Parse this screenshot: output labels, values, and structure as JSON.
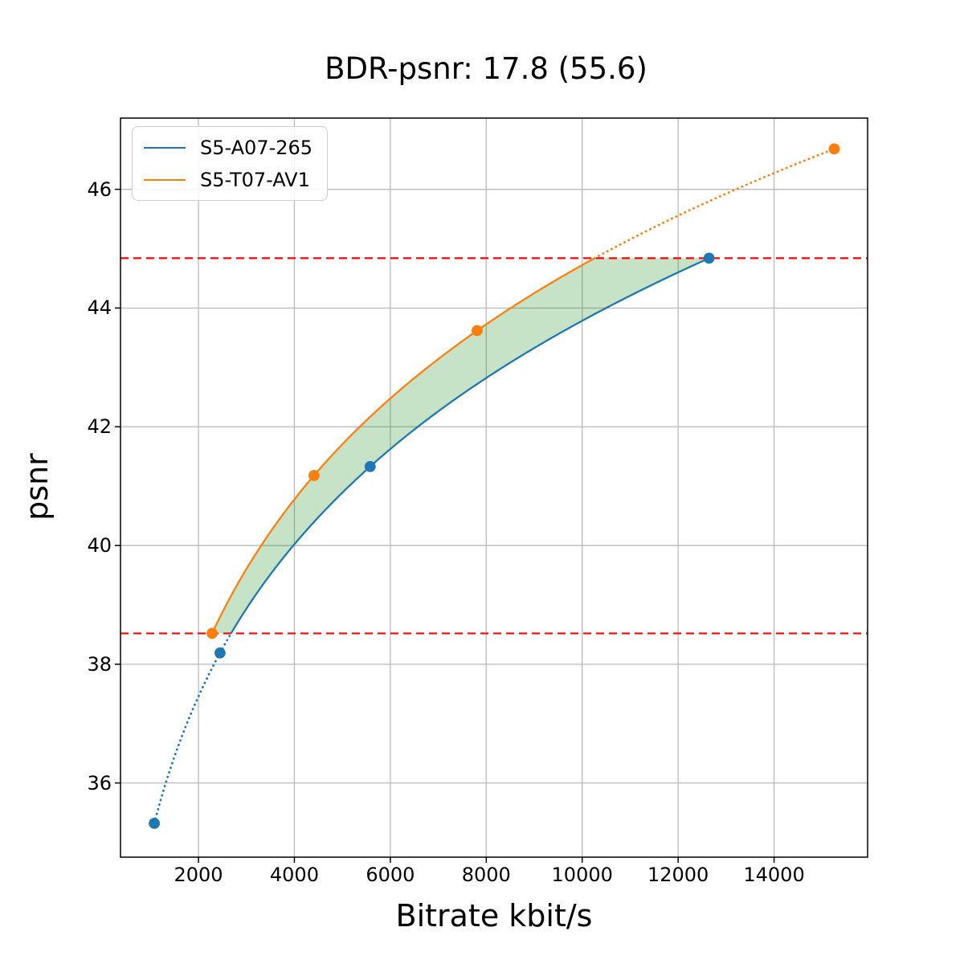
{
  "chart_data": {
    "type": "line",
    "title": "BDR-psnr: 17.8 (55.6)",
    "bd_rate_value": "17.8",
    "bd_rate_secondary": "55.6",
    "xlabel": "Bitrate kbit/s",
    "ylabel": "psnr",
    "xlim": [
      375,
      15950
    ],
    "ylim": [
      34.75,
      47.2
    ],
    "x_ticks": [
      2000,
      4000,
      6000,
      8000,
      10000,
      12000,
      14000
    ],
    "y_ticks": [
      36,
      38,
      40,
      42,
      44,
      46
    ],
    "grid": true,
    "grid_color": "#bababa",
    "legend_position": "upper left",
    "series": [
      {
        "name": "S5-A07-265",
        "color": "#1f77b4",
        "x_bitrate_kbps": [
          1080,
          2450,
          5580,
          12645
        ],
        "y_psnr": [
          35.32,
          38.19,
          41.33,
          44.84
        ]
      },
      {
        "name": "S5-T07-AV1",
        "color": "#ff7f0e",
        "x_bitrate_kbps": [
          2285,
          4410,
          7810,
          15255
        ],
        "y_psnr": [
          38.52,
          41.18,
          43.62,
          46.68
        ]
      }
    ],
    "overlap_psnr_low": 38.52,
    "overlap_psnr_high": 44.84,
    "reference_lines": [
      {
        "axis": "y",
        "value": 44.84,
        "color": "#ff0000",
        "style": "dashed"
      },
      {
        "axis": "y",
        "value": 38.52,
        "color": "#ff0000",
        "style": "dashed"
      }
    ],
    "shade_color": "#008000",
    "shade_alpha": 0.22
  }
}
